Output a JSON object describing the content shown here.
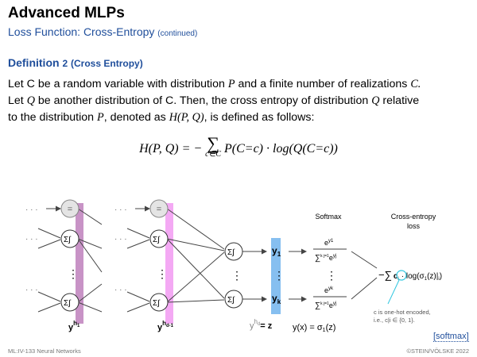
{
  "header": {
    "title": "Advanced MLPs",
    "subtitle": "Loss Function: Cross-Entropy",
    "subtitle_note": "(continued)"
  },
  "definition": {
    "label": "Definition",
    "number": "2",
    "name": "(Cross Entropy)",
    "line1_a": "Let C be a random variable with distribution",
    "line1_b": "and a finite number of realizations",
    "line2_a": "Let",
    "line2_b": "be another distribution of C. Then, the cross entropy of distribution",
    "line2_c": "relative",
    "line3_a": "to the distribution",
    "line3_b": ", denoted as",
    "line3_c": ", is defined as follows:",
    "sym_P": "P",
    "sym_C": "C.",
    "sym_Q": "Q",
    "sym_H": "H(P, Q)"
  },
  "formula": {
    "lhs": "H(P, Q) = −",
    "sum_sub": "c∈C",
    "body": "P(C=c) · log(Q(C=c))"
  },
  "diagram": {
    "ellipsis": "· · ·",
    "eq_node": "=",
    "vdots": "⋮",
    "layer_label_1": "y",
    "layer_label_1_sup": "h",
    "layer_label_1_sub": "1",
    "layer_label_2": "y",
    "layer_label_2_sup": "h",
    "layer_label_2_sub": "d-1",
    "y1": "y",
    "y1_sub": "1",
    "yk": "y",
    "yk_sub": "k",
    "out_label": "y",
    "out_label_sup": "h",
    "out_label_sub": "d",
    "out_z": "= z",
    "softmax_head": "Softmax",
    "ce_head_1": "Cross-entropy",
    "ce_head_2": "loss",
    "softmax_num_1": "e",
    "softmax_num_1_sup": "y1",
    "softmax_den": "∑",
    "softmax_den_range": "k j=1",
    "softmax_den_e": "e",
    "softmax_den_sup": "yj",
    "softmax_num_k": "e",
    "softmax_num_k_sup": "yk",
    "yx_label": "y(x) = σ",
    "yx_sub": "1",
    "yx_arg": "(z)",
    "loss_expr_a": "−∑",
    "loss_expr_c": "c",
    "loss_expr_i": "i",
    "loss_expr_b": "· log(σ",
    "loss_expr_b2": "1",
    "loss_expr_b3": "(z)|",
    "loss_expr_b4": "i",
    "loss_expr_b5": ")",
    "note_1": "c is one-hot encoded,",
    "note_2": "i.e., c|i ∈ {0, 1}."
  },
  "link": {
    "softmax": "[softmax]"
  },
  "footer": {
    "left": "ML:IV-133   Neural Networks",
    "right": "©STEIN/VÖLSKE 2022"
  },
  "colors": {
    "accent": "#1f4e9b",
    "band1": "#b56fb3",
    "band2": "#f08cf0",
    "band_out": "#86bff0",
    "note_cyan": "#2ec6e0"
  }
}
